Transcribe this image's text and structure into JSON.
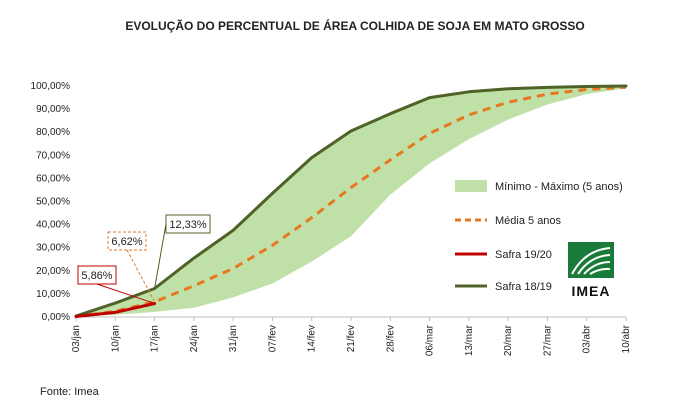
{
  "chart_data": {
    "type": "line",
    "title": "EVOLUÇÃO DO PERCENTUAL DE ÁREA COLHIDA DE SOJA EM MATO GROSSO",
    "categories": [
      "03/jan",
      "10/jan",
      "17/jan",
      "24/jan",
      "31/jan",
      "07/fev",
      "14/fev",
      "21/fev",
      "28/fev",
      "06/mar",
      "13/mar",
      "20/mar",
      "27/mar",
      "03/abr",
      "10/abr"
    ],
    "y_ticks": [
      "0,00%",
      "10,00%",
      "20,00%",
      "30,00%",
      "40,00%",
      "50,00%",
      "60,00%",
      "70,00%",
      "80,00%",
      "90,00%",
      "100,00%"
    ],
    "ylim": [
      0,
      100
    ],
    "band": {
      "name": "Mínimo - Máximo (5 anos)",
      "color": "#bfe0a6",
      "min": [
        0.2,
        1.0,
        2.2,
        4.0,
        8.5,
        14.5,
        24.0,
        35.0,
        53.0,
        66.5,
        77.0,
        85.5,
        92.0,
        96.5,
        99.0
      ],
      "max": [
        0.4,
        6.0,
        12.3,
        25.5,
        37.5,
        53.5,
        69.0,
        80.5,
        88.0,
        95.0,
        97.5,
        98.8,
        99.4,
        99.8,
        100.0
      ]
    },
    "series": [
      {
        "name": "Média 5 anos",
        "color": "#e87722",
        "style": "dashed",
        "values": [
          0.2,
          2.5,
          6.6,
          13.5,
          21.0,
          31.0,
          43.0,
          56.0,
          68.0,
          79.5,
          87.5,
          93.0,
          96.5,
          98.5,
          99.5
        ]
      },
      {
        "name": "Safra 19/20",
        "color": "#c00000",
        "style": "solid",
        "values": [
          0.2,
          2.0,
          5.86,
          null,
          null,
          null,
          null,
          null,
          null,
          null,
          null,
          null,
          null,
          null,
          null
        ]
      },
      {
        "name": "Safra 18/19",
        "color": "#4f6228",
        "style": "solid",
        "values": [
          0.4,
          6.0,
          12.33,
          25.5,
          37.5,
          53.5,
          69.0,
          80.5,
          88.0,
          95.0,
          97.5,
          98.8,
          99.4,
          99.8,
          100.0
        ]
      }
    ],
    "annotations": [
      {
        "text": "12,33%",
        "series": "Safra 18/19",
        "category": "17/jan",
        "border_color": "#4f6228",
        "border_style": "solid"
      },
      {
        "text": "6,62%",
        "series": "Média 5 anos",
        "category": "17/jan",
        "border_color": "#e87722",
        "border_style": "dashed"
      },
      {
        "text": "5,86%",
        "series": "Safra 19/20",
        "category": "17/jan",
        "border_color": "#c00000",
        "border_style": "solid"
      }
    ],
    "legend_position": "right",
    "grid": false
  },
  "logo": {
    "text": "IMEA",
    "color": "#1a7a3a"
  },
  "source": "Fonte: Imea"
}
